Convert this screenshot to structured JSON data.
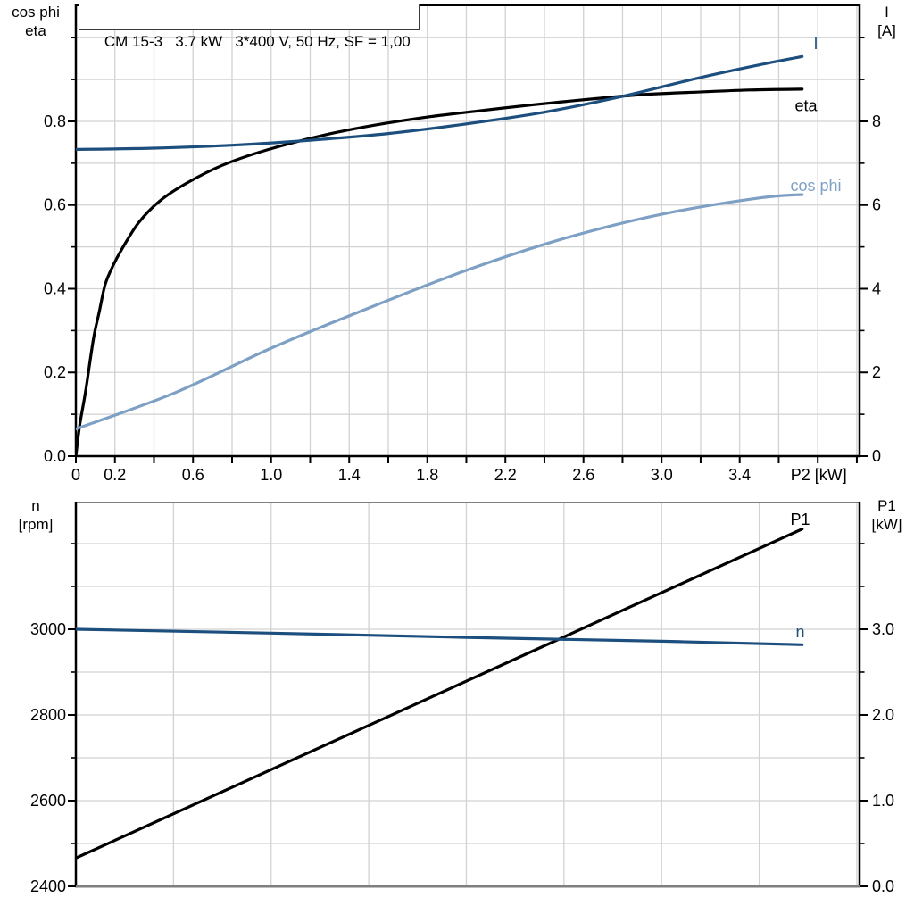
{
  "title": "CM 15-3   3.7 kW   3*400 V, 50 Hz, SF = 1,00",
  "colors": {
    "curve_black": "#000000",
    "curve_dark_blue": "#1c4e7e",
    "curve_light_blue": "#7ea0c4",
    "grid": "#d2d2d2",
    "axis_black": "#000000",
    "axis_gray": "#7f7f7f",
    "text": "#000000"
  },
  "axis_titles": {
    "top_left": {
      "line1": "cos phi",
      "line2": "eta"
    },
    "top_right": {
      "line1": "I",
      "line2": "[A]"
    },
    "bottom_left": {
      "line1": "n",
      "line2": "[rpm]"
    },
    "bottom_right": {
      "line1": "P1",
      "line2": "[kW]"
    }
  },
  "chart_data": [
    {
      "type": "line",
      "name": "electrical-curves",
      "title": "CM 15-3   3.7 kW   3*400 V, 50 Hz, SF = 1,00",
      "xlabel": "P2 [kW]",
      "x": {
        "min": 0,
        "max": 4.014,
        "grid": {
          "start": 0.2,
          "end": 4.0,
          "step": 0.2
        },
        "ticks": {
          "start": 0,
          "end": 4.0,
          "step": 0.2
        },
        "tick_labels": [
          {
            "v": 0,
            "t": "0"
          },
          {
            "v": 0.2,
            "t": "0.2"
          },
          {
            "v": 0.6,
            "t": "0.6"
          },
          {
            "v": 1.0,
            "t": "1.0"
          },
          {
            "v": 1.4,
            "t": "1.4"
          },
          {
            "v": 1.8,
            "t": "1.8"
          },
          {
            "v": 2.2,
            "t": "2.2"
          },
          {
            "v": 2.6,
            "t": "2.6"
          },
          {
            "v": 3.0,
            "t": "3.0"
          },
          {
            "v": 3.4,
            "t": "3.4"
          },
          {
            "v": 3.805,
            "t": "P2 [kW]"
          }
        ]
      },
      "y_left": {
        "label": "cos phi / eta",
        "min": 0,
        "max": 1.0773,
        "grid": {
          "start": 0.1,
          "end": 1.0,
          "step": 0.1
        },
        "major_ticks": [
          0,
          0.2,
          0.4,
          0.6,
          0.8
        ],
        "minor_ticks": [
          0.1,
          0.3,
          0.5,
          0.7,
          0.9,
          1.0
        ],
        "tick_labels": [
          {
            "v": 0,
            "t": "0.0"
          },
          {
            "v": 0.2,
            "t": "0.2"
          },
          {
            "v": 0.4,
            "t": "0.4"
          },
          {
            "v": 0.6,
            "t": "0.6"
          },
          {
            "v": 0.8,
            "t": "0.8"
          }
        ]
      },
      "y_right": {
        "label": "I [A]",
        "min": 0,
        "max": 10.773,
        "major_ticks": [
          0,
          2,
          4,
          6,
          8
        ],
        "minor_ticks": [
          1,
          3,
          5,
          7,
          9,
          10
        ],
        "tick_labels": [
          {
            "v": 0,
            "t": "0"
          },
          {
            "v": 2,
            "t": "2"
          },
          {
            "v": 4,
            "t": "4"
          },
          {
            "v": 6,
            "t": "6"
          },
          {
            "v": 8,
            "t": "8"
          }
        ]
      },
      "borders": [
        {
          "side": "top",
          "color": "axis_black",
          "w": 2
        },
        {
          "side": "left",
          "color": "axis_black",
          "w": 2.5
        },
        {
          "side": "right",
          "color": "axis_black",
          "w": 2.5
        },
        {
          "side": "bottom",
          "color": "axis_black",
          "w": 2.5
        }
      ],
      "series": [
        {
          "name": "eta",
          "axis": "left",
          "color": "curve_black",
          "points": [
            [
              0,
              0
            ],
            [
              0.02,
              0.075
            ],
            [
              0.05,
              0.155
            ],
            [
              0.09,
              0.28
            ],
            [
              0.12,
              0.345
            ],
            [
              0.15,
              0.41
            ],
            [
              0.19,
              0.455
            ],
            [
              0.23,
              0.49
            ],
            [
              0.32,
              0.557
            ],
            [
              0.43,
              0.61
            ],
            [
              0.57,
              0.653
            ],
            [
              0.75,
              0.695
            ],
            [
              0.98,
              0.732
            ],
            [
              1.26,
              0.766
            ],
            [
              1.53,
              0.791
            ],
            [
              1.81,
              0.811
            ],
            [
              2.08,
              0.826
            ],
            [
              2.35,
              0.84
            ],
            [
              2.63,
              0.853
            ],
            [
              2.9,
              0.864
            ],
            [
              3.18,
              0.87
            ],
            [
              3.45,
              0.875
            ],
            [
              3.72,
              0.877
            ]
          ]
        },
        {
          "name": "I",
          "axis": "right",
          "color": "curve_dark_blue",
          "points": [
            [
              0,
              7.33
            ],
            [
              0.4,
              7.36
            ],
            [
              0.8,
              7.43
            ],
            [
              1.2,
              7.55
            ],
            [
              1.6,
              7.71
            ],
            [
              2.0,
              7.94
            ],
            [
              2.4,
              8.22
            ],
            [
              2.8,
              8.6
            ],
            [
              3.2,
              9.05
            ],
            [
              3.5,
              9.35
            ],
            [
              3.72,
              9.55
            ]
          ]
        },
        {
          "name": "cos phi",
          "axis": "left",
          "color": "curve_light_blue",
          "points": [
            [
              0,
              0.065
            ],
            [
              0.5,
              0.15
            ],
            [
              1.0,
              0.258
            ],
            [
              1.5,
              0.354
            ],
            [
              2.0,
              0.444
            ],
            [
              2.5,
              0.52
            ],
            [
              3.0,
              0.578
            ],
            [
              3.5,
              0.617
            ],
            [
              3.72,
              0.625
            ]
          ]
        }
      ],
      "curve_labels": [
        {
          "t": "I",
          "x": 3.79,
          "axis": "right",
          "v": 9.73,
          "color": "curve_dark_blue",
          "anchor": "middle"
        },
        {
          "t": "eta",
          "x": 3.74,
          "axis": "left",
          "v": 0.825,
          "color": "curve_black",
          "anchor": "middle"
        },
        {
          "t": "cos phi",
          "x": 3.79,
          "axis": "left",
          "v": 0.634,
          "color": "curve_light_blue",
          "anchor": "middle"
        }
      ]
    },
    {
      "type": "line",
      "name": "speed-power-curves",
      "xlabel": "",
      "x": {
        "min": 0,
        "max": 4.014,
        "grid": {
          "start": 0.5,
          "end": 4.0,
          "step": 0.5
        },
        "ticks": null,
        "tick_labels": []
      },
      "y_left": {
        "label": "n [rpm]",
        "min": 2400,
        "max": 3295.8,
        "grid": {
          "start": 2500,
          "end": 3200,
          "step": 100
        },
        "major_ticks": [
          2400,
          2600,
          2800,
          3000
        ],
        "minor_ticks": [
          2500,
          2700,
          2900,
          3100,
          3200
        ],
        "tick_labels": [
          {
            "v": 2400,
            "t": "2400"
          },
          {
            "v": 2600,
            "t": "2600"
          },
          {
            "v": 2800,
            "t": "2800"
          },
          {
            "v": 3000,
            "t": "3000"
          }
        ]
      },
      "y_right": {
        "label": "P1 [kW]",
        "min": 0,
        "max": 4.479,
        "major_ticks": [
          0,
          1,
          2,
          3
        ],
        "minor_ticks": [
          0.5,
          1.5,
          2.5,
          3.5,
          4.0
        ],
        "tick_labels": [
          {
            "v": 0,
            "t": "0.0"
          },
          {
            "v": 1,
            "t": "1.0"
          },
          {
            "v": 2,
            "t": "2.0"
          },
          {
            "v": 3,
            "t": "3.0"
          }
        ]
      },
      "borders": [
        {
          "side": "top",
          "color": "axis_gray",
          "w": 2
        },
        {
          "side": "left",
          "color": "axis_black",
          "w": 2.5
        },
        {
          "side": "right",
          "color": "axis_black",
          "w": 2.5
        },
        {
          "side": "bottom",
          "color": "axis_gray",
          "w": 3
        }
      ],
      "series": [
        {
          "name": "P1",
          "axis": "right",
          "color": "curve_black",
          "points": [
            [
              0,
              0.33
            ],
            [
              3.72,
              4.17
            ]
          ]
        },
        {
          "name": "n",
          "axis": "left",
          "color": "curve_dark_blue",
          "points": [
            [
              0,
              3000
            ],
            [
              1.0,
              2991
            ],
            [
              2.0,
              2981
            ],
            [
              3.0,
              2972
            ],
            [
              3.72,
              2964
            ]
          ]
        }
      ],
      "curve_labels": [
        {
          "t": "P1",
          "x": 3.71,
          "axis": "right",
          "v": 4.22,
          "color": "curve_black",
          "anchor": "middle"
        },
        {
          "t": "n",
          "x": 3.71,
          "axis": "left",
          "v": 2981,
          "color": "curve_dark_blue",
          "anchor": "middle"
        }
      ]
    }
  ]
}
